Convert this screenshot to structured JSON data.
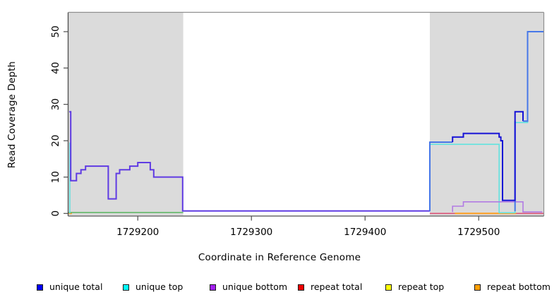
{
  "chart_data": {
    "type": "line",
    "subtype": "step-coverage-plot",
    "title": "",
    "xlabel": "Coordinate in Reference Genome",
    "ylabel": "Read Coverage Depth",
    "xlim": [
      1729139,
      1729557
    ],
    "ylim": [
      0,
      55
    ],
    "x_ticks": [
      1729200,
      1729300,
      1729400,
      1729500
    ],
    "y_ticks": [
      0,
      10,
      20,
      30,
      40,
      50
    ],
    "grid": false,
    "legend_position": "bottom",
    "shaded_regions": [
      {
        "name": "left-gray-region",
        "x0": 1729139,
        "x1": 1729240
      },
      {
        "name": "right-gray-region",
        "x0": 1729457,
        "x1": 1729557
      }
    ],
    "legend": [
      {
        "label": "unique total",
        "color": "#0000fa"
      },
      {
        "label": "unique top",
        "color": "#00ffff"
      },
      {
        "label": "unique bottom",
        "color": "#a21ff0"
      },
      {
        "label": "repeat total",
        "color": "#f00000"
      },
      {
        "label": "repeat top",
        "color": "#ffff00"
      },
      {
        "label": "repeat bottom",
        "color": "#ffa000"
      }
    ],
    "series_steps": {
      "unique_total": [
        [
          1729140,
          1729141,
          28
        ],
        [
          1729141,
          1729146,
          9
        ],
        [
          1729146,
          1729150,
          11
        ],
        [
          1729150,
          1729154,
          12
        ],
        [
          1729154,
          1729174,
          13
        ],
        [
          1729174,
          1729181,
          4
        ],
        [
          1729181,
          1729184,
          11
        ],
        [
          1729184,
          1729193,
          12
        ],
        [
          1729193,
          1729200,
          13
        ],
        [
          1729200,
          1729211,
          14
        ],
        [
          1729211,
          1729214,
          12
        ],
        [
          1729214,
          1729239,
          10
        ],
        [
          1729239,
          1729457,
          0
        ],
        [
          1729457,
          1729477,
          19
        ],
        [
          1729477,
          1729486,
          21
        ],
        [
          1729486,
          1729518,
          22
        ],
        [
          1729518,
          1729520,
          21
        ],
        [
          1729520,
          1729521,
          20
        ],
        [
          1729521,
          1729532,
          3
        ],
        [
          1729532,
          1729539,
          28
        ],
        [
          1729539,
          1729543,
          25
        ],
        [
          1729543,
          1729557,
          50
        ]
      ],
      "unique_top": [
        [
          1729140,
          1729141,
          19
        ],
        [
          1729141,
          1729457,
          0
        ],
        [
          1729457,
          1729518,
          19
        ],
        [
          1729518,
          1729532,
          0
        ],
        [
          1729532,
          1729543,
          25
        ],
        [
          1729543,
          1729557,
          50
        ]
      ],
      "unique_bottom": [
        [
          1729140,
          1729146,
          9
        ],
        [
          1729146,
          1729150,
          11
        ],
        [
          1729150,
          1729154,
          12
        ],
        [
          1729154,
          1729174,
          13
        ],
        [
          1729174,
          1729181,
          4
        ],
        [
          1729181,
          1729184,
          11
        ],
        [
          1729184,
          1729193,
          12
        ],
        [
          1729193,
          1729200,
          13
        ],
        [
          1729200,
          1729211,
          14
        ],
        [
          1729211,
          1729214,
          12
        ],
        [
          1729214,
          1729239,
          10
        ],
        [
          1729239,
          1729477,
          0
        ],
        [
          1729477,
          1729486,
          2
        ],
        [
          1729486,
          1729539,
          3
        ],
        [
          1729539,
          1729557,
          0
        ]
      ],
      "repeat_total": [
        [
          1729139,
          1729557,
          0
        ]
      ],
      "repeat_top": [
        [
          1729139,
          1729557,
          0
        ]
      ],
      "repeat_bottom": [
        [
          1729139,
          1729557,
          0
        ]
      ]
    },
    "colors": {
      "gray_region": "#dbdbdb",
      "box_border": "#8f8f8f",
      "axis": "#4d4d4d",
      "tick_text": "#000000",
      "navy": "#1612d6",
      "blue_blend": "#4677e8",
      "cyan_line": "#63e3df",
      "purple_line": "#b27be3",
      "slate_blend": "#5f3be3",
      "green_blend": "#58b560",
      "crimson": "#db5277",
      "orange": "#ffa020"
    },
    "drawn_paths": [
      {
        "name": "baseline-left-orange-dash",
        "color_key": "orange",
        "width": 2,
        "points": [
          [
            1729138.5,
            0
          ],
          [
            1729142,
            0
          ]
        ]
      },
      {
        "name": "baseline-left-green",
        "color_key": "green_blend",
        "width": 1.6,
        "points": [
          [
            1729139,
            0.25
          ],
          [
            1729240,
            0.25
          ]
        ]
      },
      {
        "name": "cyan-left-edge-spike",
        "color_key": "cyan_line",
        "width": 1.6,
        "points": [
          [
            1729140.2,
            19.5
          ],
          [
            1729140.2,
            0
          ]
        ]
      },
      {
        "name": "baseline-right-crimson",
        "color_key": "crimson",
        "width": 1.6,
        "points": [
          [
            1729457,
            0
          ],
          [
            1729557,
            0
          ]
        ]
      },
      {
        "name": "baseline-right-orange",
        "color_key": "orange",
        "width": 2,
        "points": [
          [
            1729479,
            0
          ],
          [
            1729533,
            0
          ]
        ]
      },
      {
        "name": "slate-coverage-left",
        "color_key": "slate_blend",
        "width": 2,
        "points": [
          [
            1729139.7,
            28
          ],
          [
            1729141,
            28
          ],
          [
            1729141,
            9
          ],
          [
            1729146,
            9
          ],
          [
            1729146,
            11
          ],
          [
            1729150,
            11
          ],
          [
            1729150,
            12
          ],
          [
            1729154,
            12
          ],
          [
            1729154,
            13
          ],
          [
            1729174,
            13
          ],
          [
            1729174,
            4
          ],
          [
            1729181,
            4
          ],
          [
            1729181,
            11
          ],
          [
            1729184,
            11
          ],
          [
            1729184,
            12
          ],
          [
            1729193,
            12
          ],
          [
            1729193,
            13
          ],
          [
            1729200,
            13
          ],
          [
            1729200,
            14
          ],
          [
            1729211,
            14
          ],
          [
            1729211,
            12
          ],
          [
            1729214,
            12
          ],
          [
            1729214,
            10
          ],
          [
            1729239.5,
            10
          ],
          [
            1729239.5,
            0.7
          ],
          [
            1729457,
            0.7
          ]
        ]
      },
      {
        "name": "cyan-right",
        "color_key": "cyan_line",
        "width": 1.6,
        "points": [
          [
            1729457,
            19
          ],
          [
            1729518,
            19
          ],
          [
            1729518,
            0.2
          ],
          [
            1729532,
            0.2
          ],
          [
            1729532,
            25
          ],
          [
            1729543,
            25
          ],
          [
            1729543,
            50
          ],
          [
            1729557,
            50
          ]
        ]
      },
      {
        "name": "purple-right",
        "color_key": "purple_line",
        "width": 1.6,
        "points": [
          [
            1729477,
            0.4
          ],
          [
            1729477,
            2
          ],
          [
            1729486.5,
            2
          ],
          [
            1729486.5,
            3.2
          ],
          [
            1729539,
            3.2
          ],
          [
            1729539,
            0.4
          ],
          [
            1729556,
            0.4
          ]
        ]
      },
      {
        "name": "blue-cyan-rise-19",
        "color_key": "blue_blend",
        "width": 2,
        "points": [
          [
            1729457,
            0.6
          ],
          [
            1729457,
            19.6
          ],
          [
            1729477,
            19.6
          ]
        ]
      },
      {
        "name": "blue-cyan-spike-up",
        "color_key": "blue_blend",
        "width": 2,
        "points": [
          [
            1729532,
            0.6
          ],
          [
            1729532,
            25.4
          ]
        ]
      },
      {
        "name": "navy-total-right",
        "color_key": "navy",
        "width": 2,
        "points": [
          [
            1729477,
            19.6
          ],
          [
            1729477,
            21
          ],
          [
            1729486.5,
            21
          ],
          [
            1729486.5,
            22
          ],
          [
            1729518,
            22
          ],
          [
            1729518,
            21
          ],
          [
            1729519.5,
            21
          ],
          [
            1729519.5,
            20
          ],
          [
            1729521,
            20
          ],
          [
            1729521,
            3.6
          ],
          [
            1729532,
            3.6
          ],
          [
            1729532,
            28
          ],
          [
            1729539,
            28
          ],
          [
            1729539,
            25.4
          ]
        ]
      },
      {
        "name": "blue-cyan-high-50",
        "color_key": "blue_blend",
        "width": 2,
        "points": [
          [
            1729539,
            25.4
          ],
          [
            1729543,
            25.4
          ],
          [
            1729543,
            50
          ],
          [
            1729557,
            50
          ]
        ]
      }
    ]
  }
}
